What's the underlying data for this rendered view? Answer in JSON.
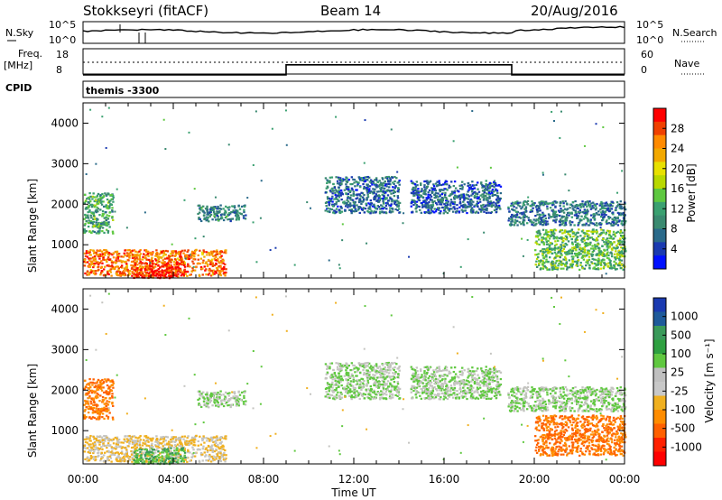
{
  "header": {
    "station": "Stokkseyri (fitACF)",
    "beam": "Beam 14",
    "date": "20/Aug/2016"
  },
  "strip_panels": {
    "nsky": {
      "label": "N.Sky",
      "ticks": [
        "10^5",
        "10^0"
      ],
      "right_label": "N.Search",
      "right_ticks": [
        "10^5",
        "10^0"
      ]
    },
    "freq": {
      "label_line1": "Freq.",
      "label_line2": "[MHz]",
      "ticks": [
        "18",
        "8"
      ],
      "right_label": "Nave",
      "right_ticks": [
        "60",
        "0"
      ]
    },
    "cpid": {
      "label": "CPID",
      "value": "themis -3300"
    }
  },
  "colorbars": {
    "power": {
      "label": "Power [dB]",
      "ticks": [
        "28",
        "24",
        "20",
        "16",
        "12",
        "8",
        "4"
      ],
      "colors": [
        "#ff0000",
        "#f04000",
        "#ff8a00",
        "#f2a800",
        "#e8e000",
        "#b8d800",
        "#5ec840",
        "#3aa070",
        "#3a8a70",
        "#2a6a8a",
        "#1a3ab0",
        "#0010ff"
      ]
    },
    "velocity": {
      "label": "Velocity [m s⁻¹]",
      "ticks": [
        "1000",
        "500",
        "100",
        "25",
        "-25",
        "-100",
        "-500",
        "-1000"
      ],
      "colors": [
        "#1a3ab0",
        "#1e5a9a",
        "#3a9a5a",
        "#2ea040",
        "#60c840",
        "#c0c0c0",
        "#c8c8c8",
        "#f0b020",
        "#ff8c00",
        "#ff6000",
        "#ff2000",
        "#ff0000"
      ]
    }
  },
  "axes": {
    "ylabel": "Slant Range [km]",
    "yticks": [
      "4000",
      "3000",
      "2000",
      "1000"
    ],
    "xticks": [
      "00:00",
      "04:00",
      "08:00",
      "12:00",
      "16:00",
      "20:00",
      "00:00"
    ],
    "xlabel": "Time UT"
  },
  "chart_data": {
    "type": "heatmap",
    "title": "Stokkseyri (fitACF) Beam 14 20/Aug/2016",
    "xlabel": "Time UT",
    "ylabel": "Slant Range [km]",
    "x_range_hours": [
      0,
      24
    ],
    "ylim": [
      180,
      4500
    ],
    "freq_segments_MHz": [
      {
        "start_h": 0,
        "end_h": 9,
        "value": 8
      },
      {
        "start_h": 9,
        "end_h": 19,
        "value": 12
      },
      {
        "start_h": 19,
        "end_h": 24,
        "value": 8
      }
    ],
    "scatter_features": [
      {
        "name": "near-range",
        "t0": 0.0,
        "t1": 6.3,
        "r0": 250,
        "r1": 900,
        "power_dB": 26,
        "velocity": -25
      },
      {
        "name": "near-range-2",
        "t0": 2.2,
        "t1": 4.5,
        "r0": 200,
        "r1": 600,
        "power_dB": 30,
        "velocity": 100
      },
      {
        "name": "band-1",
        "t0": 5.0,
        "t1": 7.2,
        "r0": 1600,
        "r1": 2000,
        "power_dB": 9,
        "velocity": 25
      },
      {
        "name": "band-2",
        "t0": 10.7,
        "t1": 14.0,
        "r0": 1800,
        "r1": 2700,
        "power_dB": 7,
        "velocity": 25
      },
      {
        "name": "band-3",
        "t0": 14.5,
        "t1": 18.5,
        "r0": 1800,
        "r1": 2600,
        "power_dB": 6,
        "velocity": 25
      },
      {
        "name": "band-4",
        "t0": 18.8,
        "t1": 24.0,
        "r0": 1500,
        "r1": 2100,
        "power_dB": 8,
        "velocity": 25
      },
      {
        "name": "late-low",
        "t0": 20.0,
        "t1": 24.0,
        "r0": 400,
        "r1": 1400,
        "power_dB": 14,
        "velocity": -500
      },
      {
        "name": "left-edge",
        "t0": 0.0,
        "t1": 1.3,
        "r0": 1300,
        "r1": 2300,
        "power_dB": 12,
        "velocity": -500
      }
    ]
  }
}
